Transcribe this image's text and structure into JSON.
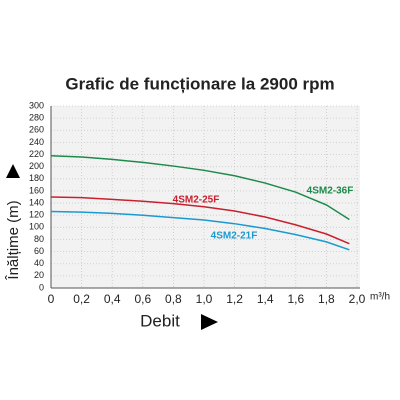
{
  "chart_data": {
    "type": "line",
    "title": "Grafic de funcționare la 2900 rpm",
    "y_label": "Înălțime (m)",
    "x_label": "Debit",
    "x_unit": "m³/h",
    "x": [
      0,
      0.2,
      0.4,
      0.6,
      0.8,
      1.0,
      1.2,
      1.4,
      1.6,
      1.8,
      1.95
    ],
    "series": [
      {
        "name": "4SM2-36F",
        "color": "#1e8a4a",
        "values": [
          218,
          216,
          212,
          207,
          201,
          194,
          185,
          173,
          158,
          137,
          113
        ]
      },
      {
        "name": "4SM2-25F",
        "color": "#c8202e",
        "values": [
          150,
          149,
          146,
          143,
          139,
          134,
          127,
          117,
          104,
          89,
          73
        ]
      },
      {
        "name": "4SM2-21F",
        "color": "#1b9ad0",
        "values": [
          126,
          125,
          123,
          120,
          116,
          112,
          106,
          98,
          88,
          76,
          63
        ]
      }
    ],
    "xlim": [
      0,
      2.0
    ],
    "xticks": [
      0,
      {
        "value": 0.2,
        "label": "0,2"
      },
      {
        "value": 0.4,
        "label": "0,4"
      },
      {
        "value": 0.6,
        "label": "0,6"
      },
      {
        "value": 0.8,
        "label": "0,8"
      },
      {
        "value": 1.0,
        "label": "1,0"
      },
      {
        "value": 1.2,
        "label": "1,2"
      },
      {
        "value": 1.4,
        "label": "1,4"
      },
      {
        "value": 1.6,
        "label": "1,6"
      },
      {
        "value": 1.8,
        "label": "1,8"
      },
      {
        "value": 2.0,
        "label": "2,0"
      }
    ],
    "ylim": [
      0,
      300
    ],
    "yticks": [
      0,
      20,
      40,
      60,
      80,
      100,
      120,
      140,
      160,
      180,
      200,
      220,
      240,
      260,
      280,
      300
    ],
    "grid": true
  }
}
